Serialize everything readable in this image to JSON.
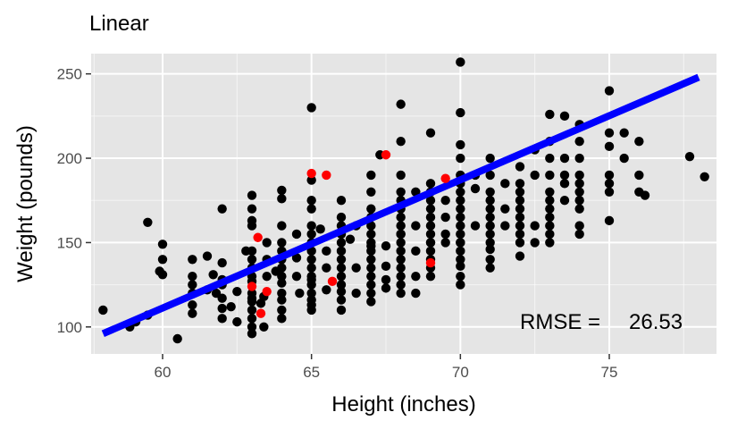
{
  "chart_data": {
    "type": "scatter",
    "title": "Linear",
    "xlabel": "Height (inches)",
    "ylabel": "Weight (pounds)",
    "xlim": [
      57.6,
      78.6
    ],
    "ylim": [
      84,
      262
    ],
    "x_ticks": [
      60,
      65,
      70,
      75
    ],
    "y_ticks": [
      100,
      150,
      200,
      250
    ],
    "x_tick_labels": [
      "60",
      "65",
      "70",
      "75"
    ],
    "y_tick_labels": [
      "100",
      "150",
      "200",
      "250"
    ],
    "grid": true,
    "legend": "none",
    "colors": {
      "panel": "#e5e5e5",
      "grid_major": "#ffffff",
      "points": "#000000",
      "highlight_points": "#ff0000",
      "fit_line": "#0000ff"
    },
    "annotation": {
      "rmse_label": "RMSE =",
      "rmse_value": "26.53",
      "x": 72.0,
      "y": 103
    },
    "fit_line": {
      "x": [
        58,
        78
      ],
      "y": [
        96,
        248
      ]
    },
    "series": [
      {
        "role": "points",
        "points": [
          [
            58,
            110
          ],
          [
            58.9,
            100
          ],
          [
            59.1,
            103
          ],
          [
            59.5,
            107
          ],
          [
            59.5,
            162
          ],
          [
            60,
            149
          ],
          [
            60,
            140
          ],
          [
            59.9,
            133
          ],
          [
            60,
            131
          ],
          [
            61,
            140
          ],
          [
            61,
            130
          ],
          [
            61,
            125
          ],
          [
            61,
            120
          ],
          [
            61,
            113
          ],
          [
            61,
            108
          ],
          [
            60.5,
            93
          ],
          [
            61.5,
            142
          ],
          [
            61.7,
            131
          ],
          [
            61.5,
            122
          ],
          [
            61.8,
            120
          ],
          [
            62,
            138
          ],
          [
            62,
            128
          ],
          [
            62,
            125
          ],
          [
            62,
            117
          ],
          [
            62,
            111
          ],
          [
            62,
            105
          ],
          [
            62,
            170
          ],
          [
            62.3,
            112
          ],
          [
            62.5,
            121
          ],
          [
            62.5,
            103
          ],
          [
            62.8,
            145
          ],
          [
            63,
            163
          ],
          [
            63,
            160
          ],
          [
            63,
            145
          ],
          [
            63,
            140
          ],
          [
            63,
            135
          ],
          [
            63,
            130
          ],
          [
            63,
            127
          ],
          [
            63,
            120
          ],
          [
            63,
            117
          ],
          [
            63,
            115
          ],
          [
            63,
            110
          ],
          [
            63,
            105
          ],
          [
            63,
            100
          ],
          [
            63,
            96
          ],
          [
            63,
            178
          ],
          [
            63,
            170
          ],
          [
            63.3,
            114
          ],
          [
            63.4,
            118
          ],
          [
            63.4,
            100
          ],
          [
            63.5,
            150
          ],
          [
            63.5,
            140
          ],
          [
            63.5,
            130
          ],
          [
            63.8,
            133
          ],
          [
            64,
            181
          ],
          [
            64,
            160
          ],
          [
            64,
            150
          ],
          [
            64,
            145
          ],
          [
            64,
            140
          ],
          [
            64,
            135
          ],
          [
            64,
            130
          ],
          [
            64,
            126
          ],
          [
            64,
            120
          ],
          [
            64,
            116
          ],
          [
            64,
            110
          ],
          [
            64,
            105
          ],
          [
            64,
            176
          ],
          [
            64.5,
            155
          ],
          [
            64.5,
            141
          ],
          [
            64.5,
            130
          ],
          [
            64.6,
            120
          ],
          [
            65,
            230
          ],
          [
            65,
            187
          ],
          [
            65,
            175
          ],
          [
            65,
            170
          ],
          [
            65,
            160
          ],
          [
            65,
            155
          ],
          [
            65,
            150
          ],
          [
            65,
            145
          ],
          [
            65,
            140
          ],
          [
            65,
            135
          ],
          [
            65,
            130
          ],
          [
            65,
            128
          ],
          [
            65,
            125
          ],
          [
            65,
            120
          ],
          [
            65,
            116
          ],
          [
            65,
            113
          ],
          [
            65,
            110
          ],
          [
            65.3,
            158
          ],
          [
            65.5,
            145
          ],
          [
            65.5,
            135
          ],
          [
            65.5,
            122
          ],
          [
            66,
            175
          ],
          [
            66,
            165
          ],
          [
            66,
            160
          ],
          [
            66,
            155
          ],
          [
            66,
            150
          ],
          [
            66,
            145
          ],
          [
            66,
            140
          ],
          [
            66,
            135
          ],
          [
            66,
            130
          ],
          [
            66,
            125
          ],
          [
            66,
            121
          ],
          [
            66,
            116
          ],
          [
            66,
            110
          ],
          [
            66.3,
            152
          ],
          [
            66.5,
            160
          ],
          [
            66.5,
            135
          ],
          [
            66.5,
            120
          ],
          [
            67,
            190
          ],
          [
            67,
            180
          ],
          [
            67,
            170
          ],
          [
            67,
            165
          ],
          [
            67,
            160
          ],
          [
            67,
            155
          ],
          [
            67,
            150
          ],
          [
            67,
            145
          ],
          [
            67,
            140
          ],
          [
            67,
            135
          ],
          [
            67,
            130
          ],
          [
            67,
            125
          ],
          [
            67,
            120
          ],
          [
            67,
            115
          ],
          [
            67.3,
            202
          ],
          [
            67.5,
            148
          ],
          [
            67.5,
            136
          ],
          [
            67.5,
            128
          ],
          [
            67.5,
            123
          ],
          [
            68,
            232
          ],
          [
            68,
            210
          ],
          [
            68,
            190
          ],
          [
            68,
            180
          ],
          [
            68,
            175
          ],
          [
            68,
            170
          ],
          [
            68,
            165
          ],
          [
            68,
            160
          ],
          [
            68,
            155
          ],
          [
            68,
            150
          ],
          [
            68,
            145
          ],
          [
            68,
            140
          ],
          [
            68,
            135
          ],
          [
            68,
            130
          ],
          [
            68,
            125
          ],
          [
            68,
            120
          ],
          [
            68.5,
            180
          ],
          [
            68.5,
            160
          ],
          [
            68.5,
            145
          ],
          [
            68.5,
            130
          ],
          [
            68.5,
            120
          ],
          [
            69,
            215
          ],
          [
            69,
            185
          ],
          [
            69,
            180
          ],
          [
            69,
            175
          ],
          [
            69,
            170
          ],
          [
            69,
            165
          ],
          [
            69,
            160
          ],
          [
            69,
            155
          ],
          [
            69,
            150
          ],
          [
            69,
            145
          ],
          [
            69,
            140
          ],
          [
            69,
            135
          ],
          [
            69,
            130
          ],
          [
            69.5,
            175
          ],
          [
            69.5,
            165
          ],
          [
            69.5,
            155
          ],
          [
            69.5,
            150
          ],
          [
            70,
            257
          ],
          [
            70,
            227
          ],
          [
            70,
            208
          ],
          [
            70,
            200
          ],
          [
            70,
            190
          ],
          [
            70,
            185
          ],
          [
            70,
            180
          ],
          [
            70,
            175
          ],
          [
            70,
            170
          ],
          [
            70,
            165
          ],
          [
            70,
            160
          ],
          [
            70,
            155
          ],
          [
            70,
            150
          ],
          [
            70,
            145
          ],
          [
            70,
            140
          ],
          [
            70,
            136
          ],
          [
            70,
            130
          ],
          [
            70,
            125
          ],
          [
            70.5,
            190
          ],
          [
            70.5,
            182
          ],
          [
            70.5,
            160
          ],
          [
            71,
            200
          ],
          [
            71,
            190
          ],
          [
            71,
            180
          ],
          [
            71,
            175
          ],
          [
            71,
            170
          ],
          [
            71,
            165
          ],
          [
            71,
            160
          ],
          [
            71,
            155
          ],
          [
            71,
            150
          ],
          [
            71,
            146
          ],
          [
            71,
            140
          ],
          [
            71,
            135
          ],
          [
            71.5,
            185
          ],
          [
            71.5,
            170
          ],
          [
            71.5,
            160
          ],
          [
            72,
            195
          ],
          [
            72,
            185
          ],
          [
            72,
            180
          ],
          [
            72,
            175
          ],
          [
            72,
            170
          ],
          [
            72,
            165
          ],
          [
            72,
            160
          ],
          [
            72,
            155
          ],
          [
            72,
            150
          ],
          [
            72,
            142
          ],
          [
            72.5,
            205
          ],
          [
            72.5,
            190
          ],
          [
            72.5,
            160
          ],
          [
            72.5,
            150
          ],
          [
            73,
            226
          ],
          [
            73,
            210
          ],
          [
            73,
            200
          ],
          [
            73,
            190
          ],
          [
            73,
            180
          ],
          [
            73,
            175
          ],
          [
            73,
            170
          ],
          [
            73,
            165
          ],
          [
            73,
            160
          ],
          [
            73,
            155
          ],
          [
            73,
            150
          ],
          [
            73.5,
            225
          ],
          [
            73.5,
            200
          ],
          [
            73.5,
            190
          ],
          [
            73.5,
            185
          ],
          [
            73.5,
            175
          ],
          [
            74,
            220
          ],
          [
            74,
            210
          ],
          [
            74,
            200
          ],
          [
            74,
            190
          ],
          [
            74,
            185
          ],
          [
            74,
            180
          ],
          [
            74,
            175
          ],
          [
            74,
            170
          ],
          [
            74,
            160
          ],
          [
            74,
            155
          ],
          [
            75,
            240
          ],
          [
            75,
            215
          ],
          [
            75,
            207
          ],
          [
            75,
            190
          ],
          [
            75,
            185
          ],
          [
            75,
            180
          ],
          [
            75,
            163
          ],
          [
            75.5,
            200
          ],
          [
            75.5,
            215
          ],
          [
            76,
            210
          ],
          [
            76,
            190
          ],
          [
            76,
            180
          ],
          [
            76.2,
            178
          ],
          [
            77.7,
            201
          ],
          [
            78.2,
            189
          ],
          [
            70,
            150
          ],
          [
            69,
            150
          ],
          [
            68,
            155
          ],
          [
            67,
            148
          ]
        ]
      },
      {
        "role": "highlight",
        "points": [
          [
            63,
            124
          ],
          [
            63.3,
            108
          ],
          [
            63.5,
            121
          ],
          [
            63.2,
            153
          ],
          [
            65,
            191
          ],
          [
            65.5,
            190
          ],
          [
            65.7,
            127
          ],
          [
            67.5,
            202
          ],
          [
            69,
            138
          ],
          [
            69.5,
            188
          ]
        ]
      }
    ]
  }
}
